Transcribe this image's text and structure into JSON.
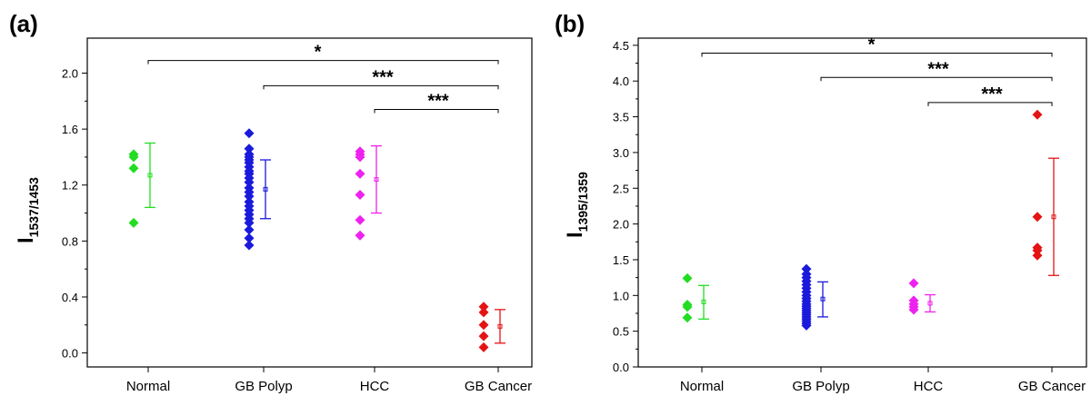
{
  "chart_data": [
    {
      "type": "scatter",
      "panel_label": "(a)",
      "ylabel": "I",
      "ylabel_sub": "1537/1453",
      "categories": [
        "Normal",
        "GB Polyp",
        "HCC",
        "GB Cancer"
      ],
      "ylim": [
        -0.1,
        2.25
      ],
      "yticks": [
        "0.0",
        "0.4",
        "0.8",
        "1.2",
        "1.6",
        "2.0"
      ],
      "ytick_values": [
        0.0,
        0.4,
        0.8,
        1.2,
        1.6,
        2.0
      ],
      "grid": false,
      "colors": [
        "#22dd22",
        "#1a1adc",
        "#ee22ee",
        "#e41414"
      ],
      "series": [
        {
          "category": "Normal",
          "points": [
            1.42,
            1.4,
            1.32,
            0.93
          ],
          "mean": 1.27,
          "err": [
            1.04,
            1.5
          ]
        },
        {
          "category": "GB Polyp",
          "points": [
            1.57,
            1.46,
            1.42,
            1.4,
            1.38,
            1.36,
            1.33,
            1.3,
            1.28,
            1.25,
            1.22,
            1.18,
            1.15,
            1.12,
            1.08,
            1.05,
            1.02,
            0.99,
            0.96,
            0.93,
            0.88,
            0.82,
            0.77
          ],
          "mean": 1.17,
          "err": [
            0.96,
            1.38
          ]
        },
        {
          "category": "HCC",
          "points": [
            1.44,
            1.42,
            1.4,
            1.28,
            1.13,
            0.95,
            0.84
          ],
          "mean": 1.24,
          "err": [
            1.0,
            1.48
          ]
        },
        {
          "category": "GB Cancer",
          "points": [
            0.33,
            0.29,
            0.2,
            0.12,
            0.04
          ],
          "mean": 0.19,
          "err": [
            0.07,
            0.31
          ]
        }
      ],
      "significance": [
        {
          "from": "Normal",
          "to": "GB Cancer",
          "y": 2.09,
          "label": "*"
        },
        {
          "from": "GB Polyp",
          "to": "GB Cancer",
          "y": 1.91,
          "label": "***"
        },
        {
          "from": "HCC",
          "to": "GB Cancer",
          "y": 1.74,
          "label": "***"
        }
      ]
    },
    {
      "type": "scatter",
      "panel_label": "(b)",
      "ylabel": "I",
      "ylabel_sub": "1395/1359",
      "categories": [
        "Normal",
        "GB Polyp",
        "HCC",
        "GB Cancer"
      ],
      "ylim": [
        0.0,
        4.6
      ],
      "yticks": [
        "0.0",
        "0.5",
        "1.0",
        "1.5",
        "2.0",
        "2.5",
        "3.0",
        "3.5",
        "4.0",
        "4.5"
      ],
      "ytick_values": [
        0.0,
        0.5,
        1.0,
        1.5,
        2.0,
        2.5,
        3.0,
        3.5,
        4.0,
        4.5
      ],
      "grid": false,
      "colors": [
        "#22dd22",
        "#1a1adc",
        "#ee22ee",
        "#e41414"
      ],
      "series": [
        {
          "category": "Normal",
          "points": [
            1.24,
            0.87,
            0.84,
            0.69
          ],
          "mean": 0.91,
          "err": [
            0.67,
            1.14
          ]
        },
        {
          "category": "GB Polyp",
          "points": [
            1.37,
            1.3,
            1.25,
            1.2,
            1.15,
            1.1,
            1.05,
            1.0,
            0.96,
            0.92,
            0.88,
            0.85,
            0.82,
            0.79,
            0.76,
            0.73,
            0.7,
            0.67,
            0.64,
            0.61,
            0.58
          ],
          "mean": 0.95,
          "err": [
            0.7,
            1.19
          ]
        },
        {
          "category": "HCC",
          "points": [
            1.17,
            0.93,
            0.88,
            0.84,
            0.8
          ],
          "mean": 0.89,
          "err": [
            0.77,
            1.01
          ]
        },
        {
          "category": "GB Cancer",
          "points": [
            3.53,
            2.1,
            1.67,
            1.63,
            1.56
          ],
          "mean": 2.1,
          "err": [
            1.28,
            2.92
          ]
        }
      ],
      "significance": [
        {
          "from": "Normal",
          "to": "GB Cancer",
          "y": 4.39,
          "label": "*"
        },
        {
          "from": "GB Polyp",
          "to": "GB Cancer",
          "y": 4.05,
          "label": "***"
        },
        {
          "from": "HCC",
          "to": "GB Cancer",
          "y": 3.7,
          "label": "***"
        }
      ]
    }
  ]
}
